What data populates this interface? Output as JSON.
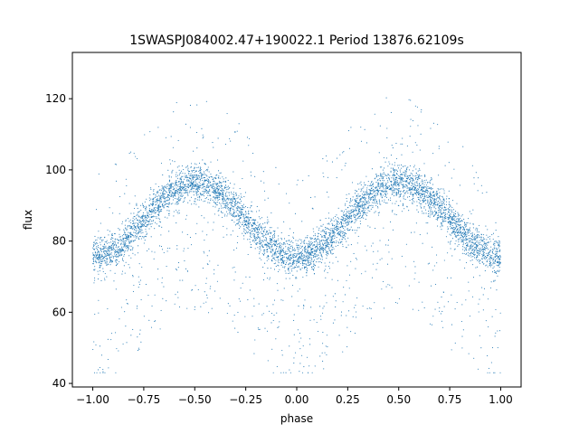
{
  "chart_data": {
    "type": "scatter",
    "title": "1SWASPJ084002.47+190022.1 Period 13876.62109s",
    "xlabel": "phase",
    "ylabel": "flux",
    "xlim": [
      -1.1,
      1.1
    ],
    "ylim": [
      39,
      133
    ],
    "xticks": [
      -1.0,
      -0.75,
      -0.5,
      -0.25,
      0.0,
      0.25,
      0.5,
      0.75,
      1.0
    ],
    "xtick_labels": [
      "−1.00",
      "−0.75",
      "−0.50",
      "−0.25",
      "0.00",
      "0.25",
      "0.50",
      "0.75",
      "1.00"
    ],
    "yticks": [
      40,
      60,
      80,
      100,
      120
    ],
    "ytick_labels": [
      "40",
      "60",
      "80",
      "100",
      "120"
    ],
    "grid": false,
    "marker_color": "#1f77b4",
    "light_curve": {
      "phase_range": [
        -1.0,
        1.0
      ],
      "period_in_phase": 1.0,
      "flux_max": 96.5,
      "flux_min": 75.5,
      "max_phase": 0.5,
      "min_phase": 0.0,
      "scatter_sd": 2.6,
      "outlier_fraction": 0.13,
      "outlier_flux_range": [
        43,
        128
      ],
      "point_count": 6000
    },
    "series": [
      {
        "x": [
          -0.98,
          -0.9,
          -0.8,
          -0.7,
          -0.6,
          -0.5,
          -0.4,
          -0.3,
          -0.2,
          -0.1,
          0.0,
          0.1,
          0.2,
          0.3,
          0.4,
          0.5,
          0.6,
          0.7,
          0.8,
          0.9,
          0.98
        ],
        "y": [
          76,
          78,
          85,
          92,
          95.5,
          96.5,
          95,
          90,
          84,
          78,
          75.5,
          78,
          84,
          91,
          95,
          96.5,
          95,
          91,
          85,
          79,
          76
        ]
      }
    ]
  }
}
